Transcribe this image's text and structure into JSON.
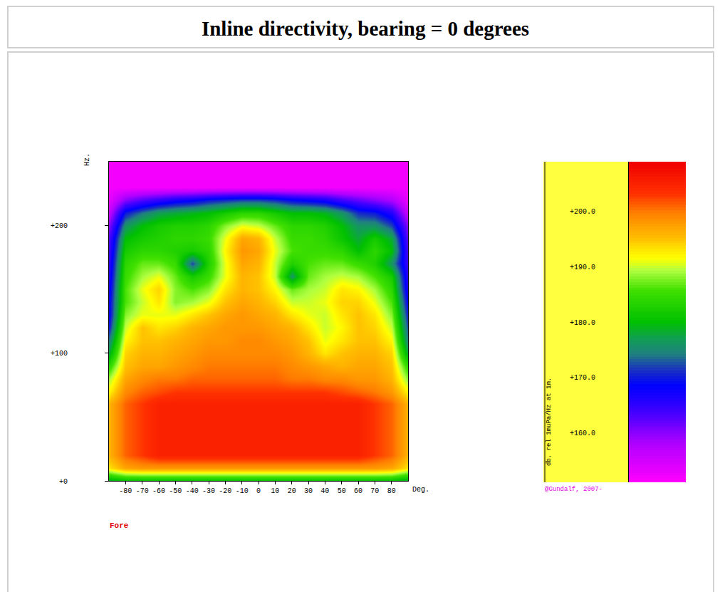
{
  "chart_data": {
    "type": "heatmap",
    "title": "Inline directivity, bearing = 0 degrees",
    "xlabel": "Deg.",
    "ylabel": "Hz.",
    "annotations": [
      "Fore",
      "@Gundalf, 2007-"
    ],
    "x": [
      -90,
      -80,
      -70,
      -60,
      -50,
      -40,
      -30,
      -20,
      -10,
      0,
      10,
      20,
      30,
      40,
      50,
      60,
      70,
      80,
      90
    ],
    "y": [
      0,
      10,
      20,
      30,
      40,
      50,
      60,
      70,
      80,
      90,
      100,
      110,
      120,
      130,
      140,
      150,
      160,
      170,
      180,
      190,
      200,
      210,
      220,
      230,
      240,
      250
    ],
    "z": [
      [
        178,
        180,
        180,
        180,
        180,
        180,
        180,
        180,
        180,
        180,
        180,
        180,
        180,
        180,
        180,
        180,
        180,
        180,
        178
      ],
      [
        193,
        197,
        198,
        198,
        198,
        198,
        198,
        198,
        198,
        198,
        198,
        198,
        198,
        198,
        198,
        198,
        198,
        197,
        193
      ],
      [
        196,
        201,
        203,
        205,
        205,
        205,
        205,
        205,
        205,
        205,
        205,
        205,
        205,
        205,
        205,
        205,
        203,
        201,
        196
      ],
      [
        196,
        201,
        203,
        205,
        205,
        205,
        205,
        205,
        205,
        205,
        205,
        205,
        205,
        205,
        205,
        205,
        203,
        201,
        196
      ],
      [
        196,
        201,
        203,
        205,
        205,
        205,
        205,
        205,
        205,
        205,
        205,
        205,
        205,
        205,
        205,
        205,
        203,
        201,
        196
      ],
      [
        196,
        201,
        203,
        205,
        205,
        205,
        205,
        205,
        205,
        205,
        205,
        205,
        205,
        205,
        205,
        205,
        203,
        201,
        196
      ],
      [
        196,
        201,
        203,
        205,
        205,
        205,
        205,
        205,
        205,
        205,
        205,
        205,
        205,
        205,
        205,
        205,
        203,
        201,
        196
      ],
      [
        192,
        199,
        201,
        202,
        203,
        203,
        203,
        203,
        203,
        203,
        203,
        203,
        203,
        203,
        202,
        201,
        200,
        198,
        192
      ],
      [
        189,
        197,
        199,
        200,
        200,
        201,
        201,
        201,
        201,
        201,
        201,
        200,
        200,
        199,
        199,
        198,
        198,
        196,
        188
      ],
      [
        184,
        195,
        197,
        197,
        198,
        199,
        200,
        200,
        200,
        200,
        200,
        199,
        198,
        197,
        196,
        197,
        197,
        195,
        184
      ],
      [
        178,
        194,
        196,
        196,
        197,
        198,
        199,
        199,
        199,
        199,
        199,
        198,
        196,
        193,
        195,
        196,
        196,
        194,
        178
      ],
      [
        174,
        192,
        195,
        195,
        196,
        197,
        198,
        198,
        199,
        199,
        198,
        197,
        195,
        191,
        193,
        195,
        195,
        192,
        174
      ],
      [
        170,
        190,
        195,
        193,
        194,
        196,
        197,
        198,
        198,
        198,
        197,
        196,
        193,
        190,
        192,
        195,
        194,
        190,
        172
      ],
      [
        168,
        188,
        191,
        191,
        191,
        193,
        195,
        197,
        198,
        197,
        196,
        193,
        191,
        190,
        193,
        195,
        193,
        188,
        170
      ],
      [
        168,
        186,
        190,
        193,
        188,
        189,
        191,
        195,
        197,
        196,
        194,
        190,
        190,
        191,
        194,
        194,
        191,
        186,
        168
      ],
      [
        167,
        186,
        191,
        194,
        188,
        186,
        188,
        193,
        196,
        195,
        192,
        187,
        189,
        190,
        193,
        192,
        189,
        184,
        166
      ],
      [
        166,
        185,
        189,
        191,
        187,
        182,
        185,
        191,
        196,
        195,
        190,
        176,
        187,
        189,
        190,
        189,
        186,
        182,
        165
      ],
      [
        165,
        184,
        187,
        187,
        185,
        172,
        183,
        191,
        197,
        196,
        190,
        183,
        186,
        187,
        187,
        185,
        183,
        176,
        164
      ],
      [
        164,
        182,
        184,
        184,
        183,
        182,
        184,
        192,
        198,
        197,
        191,
        186,
        185,
        185,
        184,
        180,
        184,
        180,
        163
      ],
      [
        163,
        180,
        182,
        183,
        184,
        184,
        185,
        191,
        197,
        196,
        190,
        185,
        185,
        184,
        181,
        178,
        182,
        178,
        162
      ],
      [
        160,
        176,
        180,
        182,
        183,
        183,
        184,
        188,
        191,
        190,
        187,
        184,
        184,
        183,
        180,
        176,
        176,
        172,
        160
      ],
      [
        156,
        170,
        174,
        177,
        178,
        179,
        180,
        182,
        184,
        184,
        182,
        180,
        180,
        179,
        176,
        171,
        170,
        166,
        156
      ],
      [
        153,
        160,
        163,
        165,
        167,
        168,
        170,
        171,
        172,
        172,
        171,
        169,
        168,
        167,
        164,
        162,
        160,
        158,
        153
      ],
      [
        152,
        152,
        152,
        152,
        152,
        152,
        152,
        152,
        152,
        152,
        152,
        152,
        152,
        152,
        152,
        152,
        152,
        152,
        152
      ],
      [
        152,
        152,
        152,
        152,
        152,
        152,
        152,
        152,
        152,
        152,
        152,
        152,
        152,
        152,
        152,
        152,
        152,
        152,
        152
      ],
      [
        152,
        152,
        152,
        152,
        152,
        152,
        152,
        152,
        152,
        152,
        152,
        152,
        152,
        152,
        152,
        152,
        152,
        152,
        152
      ]
    ],
    "xlim": [
      -90,
      90
    ],
    "xticks": [
      -80,
      -70,
      -60,
      -50,
      -40,
      -30,
      -20,
      -10,
      0,
      10,
      20,
      30,
      40,
      50,
      60,
      70,
      80
    ],
    "ylim": [
      0,
      250
    ],
    "yticks": [
      {
        "value": 0,
        "label": "+0"
      },
      {
        "value": 100,
        "label": "+100"
      },
      {
        "value": 200,
        "label": "+200"
      }
    ],
    "colorbar": {
      "title": "db. rel 1muPa/Hz at 1m.",
      "range": [
        151,
        209
      ],
      "ticks": [
        {
          "value": 160,
          "label": "+160.0"
        },
        {
          "value": 170,
          "label": "+170.0"
        },
        {
          "value": 180,
          "label": "+180.0"
        },
        {
          "value": 190,
          "label": "+190.0"
        },
        {
          "value": 200,
          "label": "+200.0"
        }
      ]
    }
  }
}
